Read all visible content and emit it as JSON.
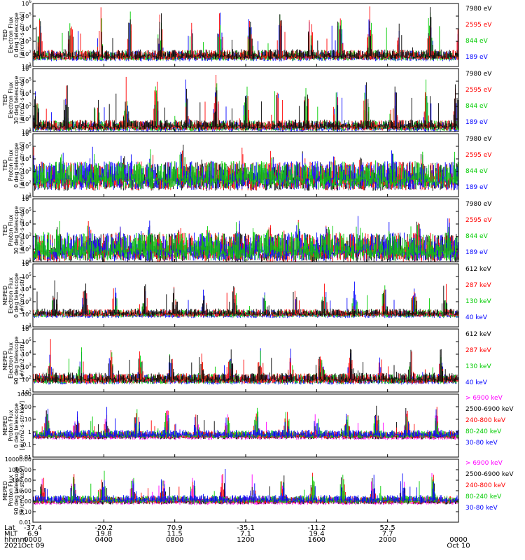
{
  "chart_data": {
    "type": "line",
    "panels": [
      {
        "ylabel": [
          "TED",
          "Electron Flux",
          "0 deg telescope",
          "[#/cm2-s-str-eV]"
        ],
        "tick_labels": [
          "10^1",
          "10^2",
          "10^3",
          "10^4",
          "10^5",
          "10^6"
        ],
        "ylim_log": [
          0,
          6
        ],
        "legend": [
          {
            "label": "7980 eV",
            "color": "#000000"
          },
          {
            "label": "2595 eV",
            "color": "#ff0000"
          },
          {
            "label": "844 eV",
            "color": "#00cc00"
          },
          {
            "label": "189 eV",
            "color": "#0000ff"
          }
        ],
        "baseline": 1.1,
        "spread": 0.4,
        "spikes": 3.8,
        "order": [
          "#0000ff",
          "#00cc00",
          "#ff0000",
          "#000000"
        ]
      },
      {
        "ylabel": [
          "TED",
          "Electron Flux",
          "30 deg telescope",
          "[#/cm2-s-str-eV]"
        ],
        "tick_labels": [
          "10^1",
          "10^2",
          "10^3",
          "10^4",
          "10^5",
          "10^6"
        ],
        "ylim_log": [
          0,
          6
        ],
        "legend": [
          {
            "label": "7980 eV",
            "color": "#000000"
          },
          {
            "label": "2595 eV",
            "color": "#ff0000"
          },
          {
            "label": "844 eV",
            "color": "#00cc00"
          },
          {
            "label": "189 eV",
            "color": "#0000ff"
          }
        ],
        "baseline": 0.6,
        "spread": 0.4,
        "spikes": 3.8,
        "order": [
          "#0000ff",
          "#00cc00",
          "#ff0000",
          "#000000"
        ]
      },
      {
        "ylabel": [
          "TED",
          "Proton Flux",
          "0 deg telescope",
          "[#/cm2-s-str-eV]"
        ],
        "tick_labels": [
          "10^1",
          "10^2",
          "10^3",
          "10^4",
          "10^5",
          "10^6"
        ],
        "ylim_log": [
          0,
          6
        ],
        "legend": [
          {
            "label": "7980 eV",
            "color": "#000000"
          },
          {
            "label": "2595 eV",
            "color": "#ff0000"
          },
          {
            "label": "844 eV",
            "color": "#00cc00"
          },
          {
            "label": "189 eV",
            "color": "#0000ff"
          }
        ],
        "baseline": 2.2,
        "spread": 1.1,
        "spikes": 1.6,
        "order": [
          "#000000",
          "#ff0000",
          "#0000ff",
          "#00cc00"
        ]
      },
      {
        "ylabel": [
          "TED",
          "Proton Flux",
          "30 deg telescope",
          "[#/cm2-s-str-eV]"
        ],
        "tick_labels": [
          "10^1",
          "10^2",
          "10^3",
          "10^4",
          "10^5",
          "10^6"
        ],
        "ylim_log": [
          0,
          6
        ],
        "legend": [
          {
            "label": "7980 eV",
            "color": "#000000"
          },
          {
            "label": "2595 eV",
            "color": "#ff0000"
          },
          {
            "label": "844 eV",
            "color": "#00cc00"
          },
          {
            "label": "189 eV",
            "color": "#0000ff"
          }
        ],
        "baseline": 1.6,
        "spread": 1.1,
        "spikes": 1.6,
        "order": [
          "#000000",
          "#ff0000",
          "#0000ff",
          "#00cc00"
        ]
      },
      {
        "ylabel": [
          "MEPED",
          "Electron Flux",
          "0 deg telescope",
          "[#/cm2-s-str]"
        ],
        "tick_labels": [
          "10^1",
          "10^2",
          "10^3",
          "10^4",
          "10^5",
          "10^6"
        ],
        "ylim_log": [
          1,
          7
        ],
        "legend": [
          {
            "label": "612 keV",
            "color": "#000000"
          },
          {
            "label": "287 keV",
            "color": "#ff0000"
          },
          {
            "label": "130 keV",
            "color": "#00cc00"
          },
          {
            "label": "40 keV",
            "color": "#0000ff"
          }
        ],
        "baseline": 2.3,
        "spread": 0.3,
        "spikes": 2.6,
        "order": [
          "#0000ff",
          "#00cc00",
          "#ff0000",
          "#000000"
        ]
      },
      {
        "ylabel": [
          "MEPED",
          "Electron Flux",
          "90 deg telescope",
          "[#/cm2-s-str]"
        ],
        "tick_labels": [
          "10^1",
          "10^2",
          "10^3",
          "10^4",
          "10^5",
          "10^6"
        ],
        "ylim_log": [
          1,
          7
        ],
        "legend": [
          {
            "label": "612 keV",
            "color": "#000000"
          },
          {
            "label": "287 keV",
            "color": "#ff0000"
          },
          {
            "label": "130 keV",
            "color": "#00cc00"
          },
          {
            "label": "40 keV",
            "color": "#0000ff"
          }
        ],
        "baseline": 2.3,
        "spread": 0.4,
        "spikes": 2.4,
        "order": [
          "#0000ff",
          "#00cc00",
          "#ff0000",
          "#000000"
        ]
      },
      {
        "ylabel": [
          "MEPED",
          "Proton Flux",
          "0 deg telescope",
          "[#/cm2-s-str-keV]"
        ],
        "tick_labels": [
          "0.01",
          "0.1",
          "1",
          "10",
          "100",
          "1000"
        ],
        "ylim_log": [
          -2,
          4
        ],
        "legend": [
          {
            "label": "> 6900 keV",
            "color": "#ff00ff"
          },
          {
            "label": "2500-6900 keV",
            "color": "#000000"
          },
          {
            "label": "240-800 keV",
            "color": "#ff0000"
          },
          {
            "label": "80-240 keV",
            "color": "#00cc00"
          },
          {
            "label": "30-80 keV",
            "color": "#0000ff"
          }
        ],
        "baseline": 0.1,
        "spread": 0.3,
        "spikes": 2.2,
        "order": [
          "#ff00ff",
          "#000000",
          "#ff0000",
          "#00cc00",
          "#0000ff"
        ]
      },
      {
        "ylabel": [
          "MEPED",
          "Proton Flux",
          "90 deg telescope",
          "[#/cm2-s-str-keV]"
        ],
        "tick_labels": [
          "0.01",
          "0.10",
          "1.00",
          "10.00",
          "100.00",
          "1000.00",
          "10000.00"
        ],
        "ylim_log": [
          -2,
          4
        ],
        "legend": [
          {
            "label": "> 6900 keV",
            "color": "#ff00ff"
          },
          {
            "label": "2500-6900 keV",
            "color": "#000000"
          },
          {
            "label": "240-800 keV",
            "color": "#ff0000"
          },
          {
            "label": "80-240 keV",
            "color": "#00cc00"
          },
          {
            "label": "30-80 keV",
            "color": "#0000ff"
          }
        ],
        "baseline": 0.1,
        "spread": 0.3,
        "spikes": 2.2,
        "order": [
          "#ff00ff",
          "#000000",
          "#ff0000",
          "#00cc00",
          "#0000ff"
        ]
      }
    ],
    "x_axis": {
      "rows": [
        {
          "label": "Lat",
          "values": [
            "-37.4",
            "-20.2",
            "70.9",
            "-35.1",
            "-11.2",
            "52.5",
            ""
          ]
        },
        {
          "label": "MLT",
          "values": [
            "6.9",
            "19.8",
            "11.5",
            "7.1",
            "19.4",
            "7.7",
            ""
          ]
        },
        {
          "label": "hhmm",
          "values": [
            "0000",
            "0400",
            "0800",
            "1200",
            "1600",
            "2000",
            "0000"
          ]
        },
        {
          "label": "2021",
          "values": [
            "Oct 09",
            "",
            "",
            "",
            "",
            "",
            "Oct 10"
          ]
        }
      ],
      "tick_hours": [
        0,
        4,
        8,
        12,
        16,
        20,
        24
      ]
    }
  }
}
